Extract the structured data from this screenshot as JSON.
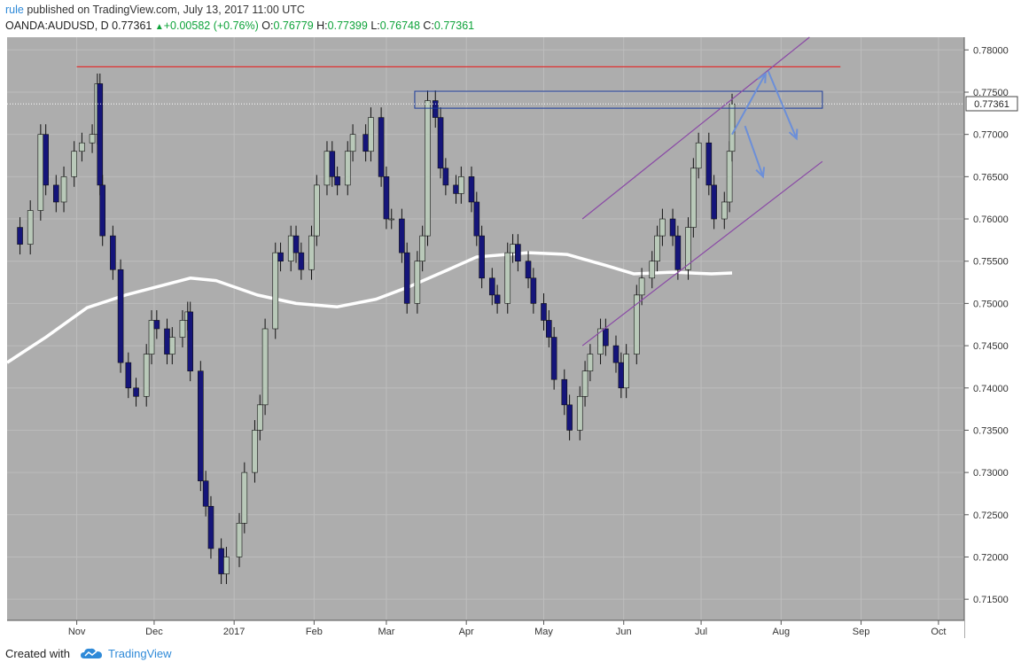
{
  "header": {
    "author": "rule",
    "published_text": "published on TradingView.com, July 13, 2017 11:00 UTC",
    "symbol": "OANDA:AUDUSD, D",
    "last_price": "0.77361",
    "change": "+0.00582 (+0.76%)",
    "open_label": "O:",
    "open_value": "0.76779",
    "high_label": "H:",
    "high_value": "0.77399",
    "low_label": "L:",
    "low_value": "0.76748",
    "close_label": "C:",
    "close_value": "0.77361"
  },
  "footer": {
    "created_with": "Created with",
    "brand": "TradingView"
  },
  "colors": {
    "plot_bg": "#adadad",
    "grid": "#bdbdbd",
    "up_candle": "#b9c9b9",
    "down_candle": "#15157a",
    "wick": "#111111",
    "moving_average": "#ffffff",
    "resistance_line": "#e03030",
    "channel": "#8a4aa6",
    "zone_border": "#1a3a9a",
    "arrows": "#6c8fd8",
    "price_tag_bg": "#ffffff"
  },
  "chart_data": {
    "type": "candlestick",
    "title": "",
    "xlabel": "",
    "ylabel": "",
    "ylim": [
      0.7125,
      0.7815
    ],
    "y_ticks": [
      "0.78000",
      "0.77500",
      "0.77000",
      "0.76500",
      "0.76000",
      "0.75500",
      "0.75000",
      "0.74500",
      "0.74000",
      "0.73500",
      "0.73000",
      "0.72500",
      "0.72000",
      "0.71500"
    ],
    "x_ticks": [
      {
        "label": "Nov",
        "date": "2016-11-01"
      },
      {
        "label": "Dec",
        "date": "2016-12-01"
      },
      {
        "label": "2017",
        "date": "2017-01-01"
      },
      {
        "label": "Feb",
        "date": "2017-02-01"
      },
      {
        "label": "Mar",
        "date": "2017-03-01"
      },
      {
        "label": "Apr",
        "date": "2017-04-01"
      },
      {
        "label": "May",
        "date": "2017-05-01"
      },
      {
        "label": "Jun",
        "date": "2017-06-01"
      },
      {
        "label": "Jul",
        "date": "2017-07-01"
      },
      {
        "label": "Aug",
        "date": "2017-08-01"
      },
      {
        "label": "Sep",
        "date": "2017-09-01"
      },
      {
        "label": "Oct",
        "date": "2017-10-01"
      }
    ],
    "x_range": [
      "2016-10-05",
      "2017-10-11"
    ],
    "current_price_label": "0.77361",
    "closes": [
      [
        "2016-10-05",
        0.759
      ],
      [
        "2016-10-10",
        0.757
      ],
      [
        "2016-10-14",
        0.761
      ],
      [
        "2016-10-18",
        0.77
      ],
      [
        "2016-10-20",
        0.764
      ],
      [
        "2016-10-24",
        0.762
      ],
      [
        "2016-10-27",
        0.765
      ],
      [
        "2016-10-31",
        0.768
      ],
      [
        "2016-11-03",
        0.769
      ],
      [
        "2016-11-07",
        0.77
      ],
      [
        "2016-11-09",
        0.776
      ],
      [
        "2016-11-10",
        0.764
      ],
      [
        "2016-11-11",
        0.758
      ],
      [
        "2016-11-15",
        0.754
      ],
      [
        "2016-11-18",
        0.743
      ],
      [
        "2016-11-21",
        0.74
      ],
      [
        "2016-11-24",
        0.739
      ],
      [
        "2016-11-28",
        0.744
      ],
      [
        "2016-11-30",
        0.748
      ],
      [
        "2016-12-02",
        0.747
      ],
      [
        "2016-12-06",
        0.744
      ],
      [
        "2016-12-08",
        0.746
      ],
      [
        "2016-12-12",
        0.748
      ],
      [
        "2016-12-14",
        0.749
      ],
      [
        "2016-12-15",
        0.742
      ],
      [
        "2016-12-19",
        0.729
      ],
      [
        "2016-12-21",
        0.726
      ],
      [
        "2016-12-23",
        0.721
      ],
      [
        "2016-12-27",
        0.718
      ],
      [
        "2016-12-29",
        0.72
      ],
      [
        "2017-01-03",
        0.724
      ],
      [
        "2017-01-05",
        0.73
      ],
      [
        "2017-01-09",
        0.735
      ],
      [
        "2017-01-11",
        0.738
      ],
      [
        "2017-01-13",
        0.747
      ],
      [
        "2017-01-17",
        0.756
      ],
      [
        "2017-01-19",
        0.755
      ],
      [
        "2017-01-23",
        0.758
      ],
      [
        "2017-01-25",
        0.756
      ],
      [
        "2017-01-27",
        0.754
      ],
      [
        "2017-01-31",
        0.758
      ],
      [
        "2017-02-02",
        0.764
      ],
      [
        "2017-02-06",
        0.768
      ],
      [
        "2017-02-08",
        0.765
      ],
      [
        "2017-02-10",
        0.764
      ],
      [
        "2017-02-14",
        0.768
      ],
      [
        "2017-02-16",
        0.77
      ],
      [
        "2017-02-21",
        0.768
      ],
      [
        "2017-02-23",
        0.772
      ],
      [
        "2017-02-27",
        0.765
      ],
      [
        "2017-03-01",
        0.76
      ],
      [
        "2017-03-03",
        0.76
      ],
      [
        "2017-03-07",
        0.756
      ],
      [
        "2017-03-09",
        0.75
      ],
      [
        "2017-03-13",
        0.755
      ],
      [
        "2017-03-15",
        0.758
      ],
      [
        "2017-03-17",
        0.774
      ],
      [
        "2017-03-20",
        0.772
      ],
      [
        "2017-03-22",
        0.766
      ],
      [
        "2017-03-24",
        0.764
      ],
      [
        "2017-03-28",
        0.763
      ],
      [
        "2017-03-30",
        0.765
      ],
      [
        "2017-04-03",
        0.762
      ],
      [
        "2017-04-05",
        0.758
      ],
      [
        "2017-04-07",
        0.753
      ],
      [
        "2017-04-11",
        0.751
      ],
      [
        "2017-04-13",
        0.75
      ],
      [
        "2017-04-17",
        0.756
      ],
      [
        "2017-04-19",
        0.757
      ],
      [
        "2017-04-21",
        0.755
      ],
      [
        "2017-04-25",
        0.753
      ],
      [
        "2017-04-27",
        0.75
      ],
      [
        "2017-05-01",
        0.748
      ],
      [
        "2017-05-03",
        0.746
      ],
      [
        "2017-05-05",
        0.741
      ],
      [
        "2017-05-09",
        0.738
      ],
      [
        "2017-05-11",
        0.735
      ],
      [
        "2017-05-15",
        0.739
      ],
      [
        "2017-05-17",
        0.742
      ],
      [
        "2017-05-19",
        0.744
      ],
      [
        "2017-05-23",
        0.747
      ],
      [
        "2017-05-25",
        0.745
      ],
      [
        "2017-05-29",
        0.743
      ],
      [
        "2017-05-31",
        0.74
      ],
      [
        "2017-06-02",
        0.744
      ],
      [
        "2017-06-06",
        0.751
      ],
      [
        "2017-06-08",
        0.753
      ],
      [
        "2017-06-12",
        0.755
      ],
      [
        "2017-06-14",
        0.758
      ],
      [
        "2017-06-16",
        0.76
      ],
      [
        "2017-06-20",
        0.758
      ],
      [
        "2017-06-22",
        0.754
      ],
      [
        "2017-06-26",
        0.759
      ],
      [
        "2017-06-28",
        0.766
      ],
      [
        "2017-06-30",
        0.769
      ],
      [
        "2017-07-04",
        0.764
      ],
      [
        "2017-07-06",
        0.76
      ],
      [
        "2017-07-10",
        0.762
      ],
      [
        "2017-07-12",
        0.768
      ],
      [
        "2017-07-13",
        0.77361
      ]
    ],
    "moving_average": [
      [
        "2016-10-05",
        0.743
      ],
      [
        "2016-10-20",
        0.746
      ],
      [
        "2016-11-05",
        0.7495
      ],
      [
        "2016-11-20",
        0.751
      ],
      [
        "2016-12-05",
        0.7522
      ],
      [
        "2016-12-15",
        0.753
      ],
      [
        "2016-12-25",
        0.7527
      ],
      [
        "2017-01-10",
        0.751
      ],
      [
        "2017-01-25",
        0.75
      ],
      [
        "2017-02-10",
        0.7496
      ],
      [
        "2017-02-25",
        0.7505
      ],
      [
        "2017-03-10",
        0.752
      ],
      [
        "2017-03-25",
        0.754
      ],
      [
        "2017-04-05",
        0.7555
      ],
      [
        "2017-04-25",
        0.756
      ],
      [
        "2017-05-10",
        0.7558
      ],
      [
        "2017-05-25",
        0.7545
      ],
      [
        "2017-06-05",
        0.7535
      ],
      [
        "2017-06-20",
        0.7537
      ],
      [
        "2017-07-05",
        0.7535
      ],
      [
        "2017-07-13",
        0.7536
      ]
    ],
    "annotations": {
      "resistance_level": 0.778,
      "resistance_span": [
        "2016-11-01",
        "2017-08-24"
      ],
      "supply_zone": {
        "from": "2017-03-12",
        "to": "2017-08-17",
        "low": 0.7731,
        "high": 0.7751
      },
      "channel_upper": {
        "from": [
          "2017-05-16",
          0.76
        ],
        "to": [
          "2017-08-12",
          0.7815
        ]
      },
      "channel_lower": {
        "from": [
          "2017-05-16",
          0.745
        ],
        "to": [
          "2017-08-17",
          0.7668
        ]
      },
      "arrows": [
        {
          "from": [
            "2017-07-13",
            0.77
          ],
          "to": [
            "2017-07-26",
            0.7772
          ]
        },
        {
          "from": [
            "2017-07-27",
            0.7775
          ],
          "to": [
            "2017-08-07",
            0.7695
          ]
        },
        {
          "from": [
            "2017-07-18",
            0.771
          ],
          "to": [
            "2017-07-25",
            0.765
          ]
        }
      ]
    }
  }
}
